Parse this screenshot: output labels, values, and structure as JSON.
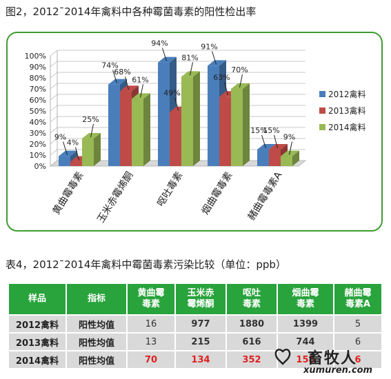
{
  "figure": {
    "title": "图2，2012¯2014年禽料中各种霉菌毒素的阳性检出率"
  },
  "chart_data": {
    "type": "bar",
    "title": "",
    "categories": [
      "黄曲霉毒素",
      "玉米赤霉烯酮",
      "呕吐毒素",
      "烟曲霉毒素",
      "赭曲霉毒素A"
    ],
    "series": [
      {
        "name": "2012禽料",
        "values": [
          9,
          74,
          94,
          91,
          15
        ],
        "color": "#4a7ebb"
      },
      {
        "name": "2013禽料",
        "values": [
          4,
          68,
          49,
          63,
          15
        ],
        "color": "#be4b48"
      },
      {
        "name": "2014禽料",
        "values": [
          25,
          61,
          81,
          70,
          9
        ],
        "color": "#98b954"
      }
    ],
    "value_labels": [
      [
        "9%",
        "74%",
        "94%",
        "91%",
        "15%"
      ],
      [
        "4%",
        "68%",
        "49%",
        "63%",
        "15%"
      ],
      [
        "25%",
        "61%",
        "81%",
        "70%",
        "9%"
      ]
    ],
    "yticks": [
      "0%",
      "10%",
      "20%",
      "30%",
      "40%",
      "50%",
      "60%",
      "70%",
      "80%",
      "90%",
      "100%"
    ],
    "ylim": [
      0,
      100
    ],
    "grid": true,
    "legend": "right"
  },
  "table": {
    "title": "表4，2012¯2014年禽料中霉菌毒素污染比较（单位：ppb）",
    "headers": [
      "样品",
      "指标",
      "黄曲霉毒素",
      "玉米赤霉烯酮",
      "呕吐毒素",
      "烟曲霉毒素",
      "赭曲霉毒素A"
    ],
    "header_lines": [
      [
        "样品"
      ],
      [
        "指标"
      ],
      [
        "黄曲霉",
        "毒素"
      ],
      [
        "玉米赤",
        "霉烯酮"
      ],
      [
        "呕吐",
        "毒素"
      ],
      [
        "烟曲霉",
        "毒素"
      ],
      [
        "赭曲霉",
        "毒素A"
      ]
    ],
    "rows": [
      {
        "sample": "2012禽料",
        "metric": "阳性均值",
        "values": [
          "16",
          "977",
          "1880",
          "1399",
          "5"
        ]
      },
      {
        "sample": "2013禽料",
        "metric": "阳性均值",
        "values": [
          "13",
          "215",
          "616",
          "744",
          "6"
        ]
      },
      {
        "sample": "2014禽料",
        "metric": "阳性均值",
        "values": [
          "70",
          "134",
          "352",
          "158",
          "6"
        ]
      }
    ]
  },
  "watermark": {
    "text": "畜牧人",
    "url": "xumuren.com"
  }
}
